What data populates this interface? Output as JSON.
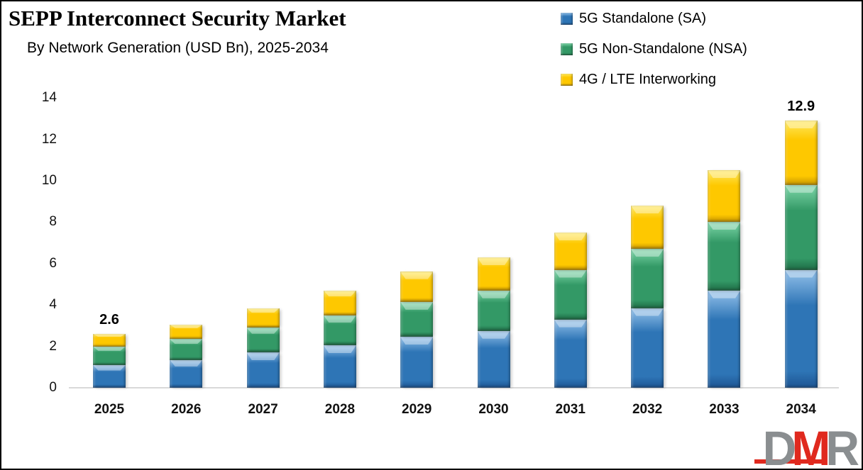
{
  "header": {
    "title": "SEPP Interconnect Security Market",
    "subtitle": "By Network Generation (USD Bn), 2025-2034"
  },
  "colors": {
    "background": "#FFFFFF",
    "border": "#000000",
    "axis_line": "#D9D9D9",
    "text": "#000000",
    "logo_gray": "#8A8E90",
    "logo_red": "#E0291E"
  },
  "chart_data": {
    "type": "bar",
    "stacked": true,
    "title": "SEPP Interconnect Security Market",
    "subtitle": "By Network Generation (USD Bn), 2025-2034",
    "xlabel": "",
    "ylabel": "",
    "ylim": [
      0,
      14
    ],
    "yticks": [
      0,
      2,
      4,
      6,
      8,
      10,
      12,
      14
    ],
    "grid": false,
    "legend_position": "top-right",
    "categories": [
      "2025",
      "2026",
      "2027",
      "2028",
      "2029",
      "2030",
      "2031",
      "2032",
      "2033",
      "2034"
    ],
    "series": [
      {
        "key": "sa",
        "name": "5G Standalone (SA)",
        "color": "#2E75B6",
        "color_light": "#7FB2E0",
        "color_dark": "#1D5492",
        "values": [
          1.1,
          1.35,
          1.7,
          2.05,
          2.45,
          2.75,
          3.3,
          3.85,
          4.7,
          5.7
        ]
      },
      {
        "key": "nsa",
        "name": "5G Non-Standalone (NSA)",
        "color": "#339966",
        "color_light": "#6FCB9C",
        "color_dark": "#1E6B45",
        "values": [
          0.9,
          1.0,
          1.2,
          1.45,
          1.7,
          1.95,
          2.4,
          2.85,
          3.3,
          4.1
        ]
      },
      {
        "key": "lte",
        "name": "4G / LTE Interworking",
        "color": "#FEC800",
        "color_light": "#FFE34D",
        "color_dark": "#C69500",
        "values": [
          0.6,
          0.7,
          0.95,
          1.2,
          1.45,
          1.6,
          1.8,
          2.1,
          2.5,
          3.1
        ]
      }
    ],
    "totals": [
      2.6,
      3.05,
      3.85,
      4.7,
      5.6,
      6.3,
      7.5,
      8.8,
      10.5,
      12.9
    ],
    "data_labels": [
      "2.6",
      "",
      "",
      "",
      "",
      "",
      "",
      "",
      "",
      "12.9"
    ]
  },
  "watermark": {
    "letter_d": "D",
    "letter_m": "M",
    "letter_r": "R"
  }
}
